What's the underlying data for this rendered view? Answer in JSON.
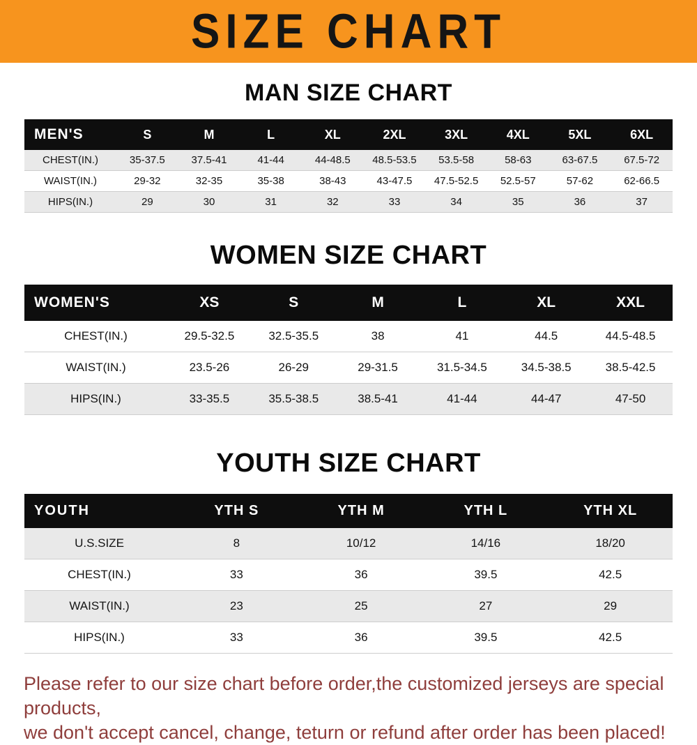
{
  "banner": {
    "title": "SIZE CHART"
  },
  "colors": {
    "banner_bg": "#F7941E",
    "banner_text": "#151515",
    "table_header_bg": "#0E0E0E",
    "table_header_text": "#FFFFFF",
    "shaded_row_bg": "#E9E9E9",
    "notice_text": "#8F3E3C"
  },
  "chart_data": [
    {
      "type": "table",
      "title": "MAN SIZE CHART",
      "header_label": "MEN'S",
      "columns": [
        "S",
        "M",
        "L",
        "XL",
        "2XL",
        "3XL",
        "4XL",
        "5XL",
        "6XL"
      ],
      "rows": [
        {
          "label": "CHEST(IN.)",
          "values": [
            "35-37.5",
            "37.5-41",
            "41-44",
            "44-48.5",
            "48.5-53.5",
            "53.5-58",
            "58-63",
            "63-67.5",
            "67.5-72"
          ]
        },
        {
          "label": "WAIST(IN.)",
          "values": [
            "29-32",
            "32-35",
            "35-38",
            "38-43",
            "43-47.5",
            "47.5-52.5",
            "52.5-57",
            "57-62",
            "62-66.5"
          ]
        },
        {
          "label": "HIPS(IN.)",
          "values": [
            "29",
            "30",
            "31",
            "32",
            "33",
            "34",
            "35",
            "36",
            "37"
          ]
        }
      ]
    },
    {
      "type": "table",
      "title": "WOMEN SIZE CHART",
      "header_label": "WOMEN'S",
      "columns": [
        "XS",
        "S",
        "M",
        "L",
        "XL",
        "XXL"
      ],
      "rows": [
        {
          "label": "CHEST(IN.)",
          "values": [
            "29.5-32.5",
            "32.5-35.5",
            "38",
            "41",
            "44.5",
            "44.5-48.5"
          ]
        },
        {
          "label": "WAIST(IN.)",
          "values": [
            "23.5-26",
            "26-29",
            "29-31.5",
            "31.5-34.5",
            "34.5-38.5",
            "38.5-42.5"
          ]
        },
        {
          "label": "HIPS(IN.)",
          "values": [
            "33-35.5",
            "35.5-38.5",
            "38.5-41",
            "41-44",
            "44-47",
            "47-50"
          ]
        }
      ]
    },
    {
      "type": "table",
      "title": "YOUTH SIZE CHART",
      "header_label": "YOUTH",
      "columns": [
        "YTH S",
        "YTH M",
        "YTH L",
        "YTH XL"
      ],
      "rows": [
        {
          "label": "U.S.SIZE",
          "values": [
            "8",
            "10/12",
            "14/16",
            "18/20"
          ]
        },
        {
          "label": "CHEST(IN.)",
          "values": [
            "33",
            "36",
            "39.5",
            "42.5"
          ]
        },
        {
          "label": "WAIST(IN.)",
          "values": [
            "23",
            "25",
            "27",
            "29"
          ]
        },
        {
          "label": "HIPS(IN.)",
          "values": [
            "33",
            "36",
            "39.5",
            "42.5"
          ]
        }
      ]
    }
  ],
  "footer": {
    "line1": "Please refer to our size chart before order,the customized jerseys are special products,",
    "line2": "we don't accept cancel, change, teturn or refund after order has been placed!"
  }
}
